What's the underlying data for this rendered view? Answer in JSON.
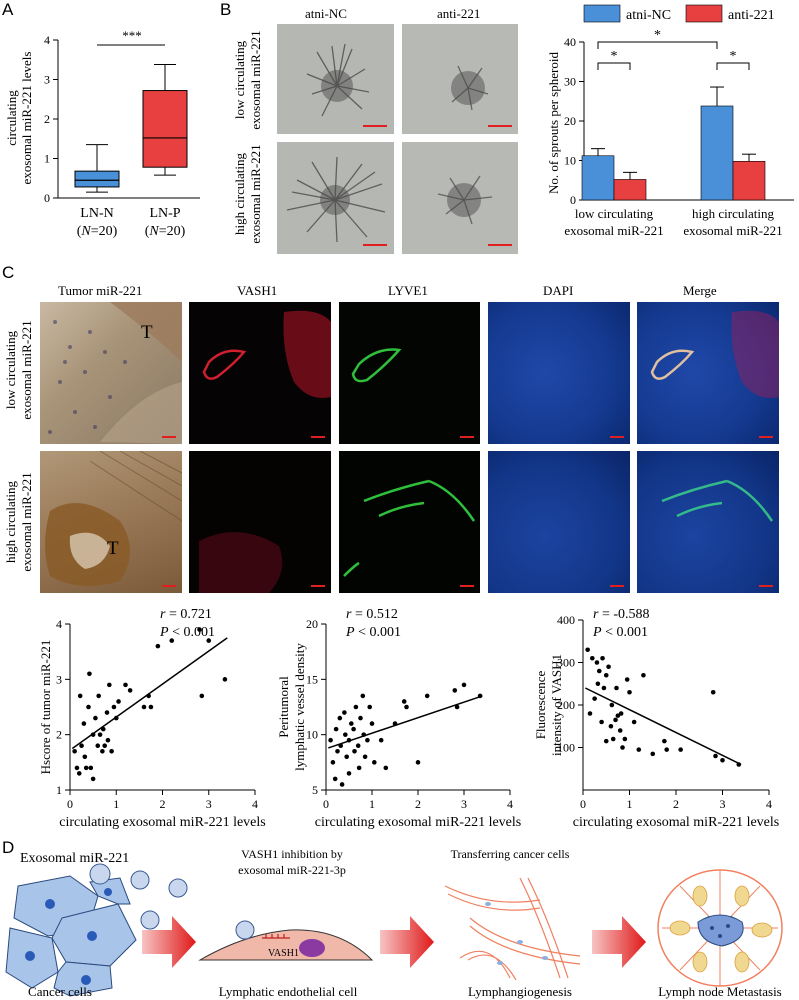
{
  "panels": {
    "A": "A",
    "B": "B",
    "C": "C",
    "D": "D"
  },
  "panel_a": {
    "ylabel_line1": "circulating",
    "ylabel_line2": "exosomal miR-221 levels",
    "significance": "***",
    "groups": [
      {
        "name": "LN-N",
        "n_label": "(N=20)",
        "min": 0.15,
        "q1": 0.28,
        "median": 0.45,
        "q3": 0.68,
        "max": 1.35,
        "color": "#4a90d9"
      },
      {
        "name": "LN-P",
        "n_label": "(N=20)",
        "min": 0.58,
        "q1": 0.78,
        "median": 1.52,
        "q3": 2.72,
        "max": 3.38,
        "color": "#e84040"
      }
    ],
    "yticks": [
      0,
      1,
      2,
      3,
      4
    ]
  },
  "panel_b": {
    "col_titles": [
      "atni-NC",
      "anti-221"
    ],
    "row_titles": [
      [
        "low circulating",
        "exosomal miR-221"
      ],
      [
        "high circulating",
        "exosomal miR-221"
      ]
    ]
  },
  "panel_c": {
    "col_titles": [
      "Tumor miR-221",
      "VASH1",
      "LYVE1",
      "DAPI",
      "Merge"
    ],
    "row_titles": [
      [
        "low circulating",
        "exosomal miR-221"
      ],
      [
        "high circulating",
        "exosomal miR-221"
      ]
    ],
    "t_label": "T"
  },
  "panel_d": {
    "title": "Exosomal miR-221",
    "step2_title_line1": "VASH1 inhibition by",
    "step2_title_line2": "exosomal miR-221-3p",
    "step3_title": "Transferring cancer cells",
    "vash1": "VASH1",
    "captions": [
      "Cancer cells",
      "Lymphatic endothelial cell",
      "Lymphangiogenesis",
      "Lymph node Metastasis"
    ]
  },
  "colors": {
    "blue": "#4a90d9",
    "red": "#e84040",
    "scale_bar": "#e02020"
  },
  "chart_data": [
    {
      "type": "box",
      "categories": [
        "LN-N",
        "LN-P"
      ],
      "ylabel": "circulating exosomal miR-221 levels",
      "ylim": [
        0,
        4
      ],
      "annotation": "***"
    },
    {
      "type": "bar",
      "categories": [
        "low circulating exosomal miR-221",
        "high circulating exosomal miR-221"
      ],
      "series": [
        {
          "name": "atni-NC",
          "values": [
            11.2,
            23.8
          ],
          "errors": [
            1.8,
            4.8
          ],
          "color": "#4a90d9"
        },
        {
          "name": "anti-221",
          "values": [
            5.2,
            9.8
          ],
          "errors": [
            1.8,
            1.8
          ],
          "color": "#e84040"
        }
      ],
      "ylabel": "No. of sprouts per spheroid",
      "ylim": [
        0,
        40
      ],
      "yticks": [
        0,
        10,
        20,
        30,
        40
      ],
      "legend": "top",
      "annotations": [
        "*",
        "*",
        "*"
      ]
    },
    {
      "type": "scatter",
      "xlabel": "circulating exosomal miR-221 levels",
      "ylabel": "Hscore of tumor miR-221",
      "xlim": [
        0,
        4
      ],
      "ylim": [
        1,
        4
      ],
      "xticks": [
        0,
        1,
        2,
        3,
        4
      ],
      "yticks": [
        1,
        2,
        3,
        4
      ],
      "stats": [
        "r = 0.721",
        "P < 0.001"
      ],
      "fit": [
        [
          0.05,
          1.75
        ],
        [
          3.4,
          3.75
        ]
      ],
      "points": [
        [
          0.1,
          1.7
        ],
        [
          0.15,
          1.4
        ],
        [
          0.2,
          1.3
        ],
        [
          0.22,
          2.7
        ],
        [
          0.25,
          1.8
        ],
        [
          0.3,
          2.2
        ],
        [
          0.32,
          1.6
        ],
        [
          0.35,
          1.4
        ],
        [
          0.4,
          2.5
        ],
        [
          0.42,
          3.1
        ],
        [
          0.45,
          1.4
        ],
        [
          0.5,
          2.0
        ],
        [
          0.5,
          1.2
        ],
        [
          0.55,
          2.3
        ],
        [
          0.6,
          1.8
        ],
        [
          0.62,
          2.7
        ],
        [
          0.65,
          2.0
        ],
        [
          0.7,
          1.7
        ],
        [
          0.72,
          2.1
        ],
        [
          0.75,
          1.8
        ],
        [
          0.8,
          2.4
        ],
        [
          0.82,
          1.9
        ],
        [
          0.85,
          2.9
        ],
        [
          0.9,
          1.7
        ],
        [
          0.95,
          2.5
        ],
        [
          1.0,
          2.3
        ],
        [
          1.05,
          2.6
        ],
        [
          1.2,
          2.9
        ],
        [
          1.3,
          2.8
        ],
        [
          1.6,
          2.5
        ],
        [
          1.7,
          2.7
        ],
        [
          1.75,
          2.5
        ],
        [
          1.9,
          3.6
        ],
        [
          2.2,
          3.7
        ],
        [
          2.8,
          3.9
        ],
        [
          2.85,
          2.7
        ],
        [
          3.0,
          3.7
        ],
        [
          3.35,
          3.0
        ]
      ]
    },
    {
      "type": "scatter",
      "xlabel": "circulating exosomal miR-221 levels",
      "ylabel": "Peritumoral lymphatic vessel density",
      "xlim": [
        0,
        4
      ],
      "ylim": [
        5,
        20
      ],
      "xticks": [
        0,
        1,
        2,
        3,
        4
      ],
      "yticks": [
        5,
        10,
        15,
        20
      ],
      "stats": [
        "r = 0.512",
        "P < 0.001"
      ],
      "fit": [
        [
          0.05,
          8.8
        ],
        [
          3.4,
          13.5
        ]
      ],
      "points": [
        [
          0.1,
          9.5
        ],
        [
          0.15,
          7.5
        ],
        [
          0.2,
          6.0
        ],
        [
          0.22,
          10.5
        ],
        [
          0.25,
          8.5
        ],
        [
          0.3,
          11.5
        ],
        [
          0.32,
          9.0
        ],
        [
          0.35,
          5.5
        ],
        [
          0.4,
          12.0
        ],
        [
          0.42,
          10.0
        ],
        [
          0.45,
          8.0
        ],
        [
          0.5,
          9.5
        ],
        [
          0.5,
          6.5
        ],
        [
          0.55,
          11.0
        ],
        [
          0.6,
          10.5
        ],
        [
          0.62,
          8.5
        ],
        [
          0.65,
          12.5
        ],
        [
          0.7,
          9.0
        ],
        [
          0.72,
          7.0
        ],
        [
          0.75,
          11.5
        ],
        [
          0.8,
          13.5
        ],
        [
          0.82,
          10.0
        ],
        [
          0.85,
          8.0
        ],
        [
          0.9,
          9.5
        ],
        [
          0.95,
          12.5
        ],
        [
          1.0,
          11.0
        ],
        [
          1.05,
          7.5
        ],
        [
          1.2,
          9.5
        ],
        [
          1.3,
          7.0
        ],
        [
          1.5,
          11.0
        ],
        [
          1.7,
          13.0
        ],
        [
          1.75,
          12.5
        ],
        [
          2.0,
          7.5
        ],
        [
          2.2,
          13.5
        ],
        [
          2.8,
          14.0
        ],
        [
          2.85,
          12.5
        ],
        [
          3.0,
          14.5
        ],
        [
          3.35,
          13.5
        ]
      ]
    },
    {
      "type": "scatter",
      "xlabel": "circulating exosomal miR-221 levels",
      "ylabel": "Fluorescence intensity of VASH1",
      "xlim": [
        0,
        4
      ],
      "ylim": [
        0,
        400
      ],
      "xticks": [
        0,
        1,
        2,
        3,
        4
      ],
      "yticks": [
        100,
        200,
        300,
        400
      ],
      "stats": [
        "r = -0.588",
        "P < 0.001"
      ],
      "fit": [
        [
          0.05,
          240
        ],
        [
          3.4,
          60
        ]
      ],
      "points": [
        [
          0.1,
          330
        ],
        [
          0.15,
          180
        ],
        [
          0.2,
          310
        ],
        [
          0.25,
          215
        ],
        [
          0.3,
          300
        ],
        [
          0.32,
          250
        ],
        [
          0.35,
          280
        ],
        [
          0.4,
          160
        ],
        [
          0.42,
          310
        ],
        [
          0.45,
          240
        ],
        [
          0.5,
          270
        ],
        [
          0.5,
          115
        ],
        [
          0.55,
          290
        ],
        [
          0.6,
          150
        ],
        [
          0.62,
          200
        ],
        [
          0.65,
          120
        ],
        [
          0.7,
          165
        ],
        [
          0.72,
          240
        ],
        [
          0.75,
          175
        ],
        [
          0.8,
          140
        ],
        [
          0.82,
          180
        ],
        [
          0.85,
          100
        ],
        [
          0.9,
          120
        ],
        [
          0.95,
          260
        ],
        [
          1.0,
          230
        ],
        [
          1.1,
          160
        ],
        [
          1.2,
          95
        ],
        [
          1.3,
          270
        ],
        [
          1.5,
          85
        ],
        [
          1.75,
          115
        ],
        [
          1.8,
          95
        ],
        [
          2.1,
          95
        ],
        [
          2.8,
          230
        ],
        [
          2.85,
          80
        ],
        [
          3.0,
          70
        ],
        [
          3.35,
          60
        ]
      ]
    }
  ]
}
